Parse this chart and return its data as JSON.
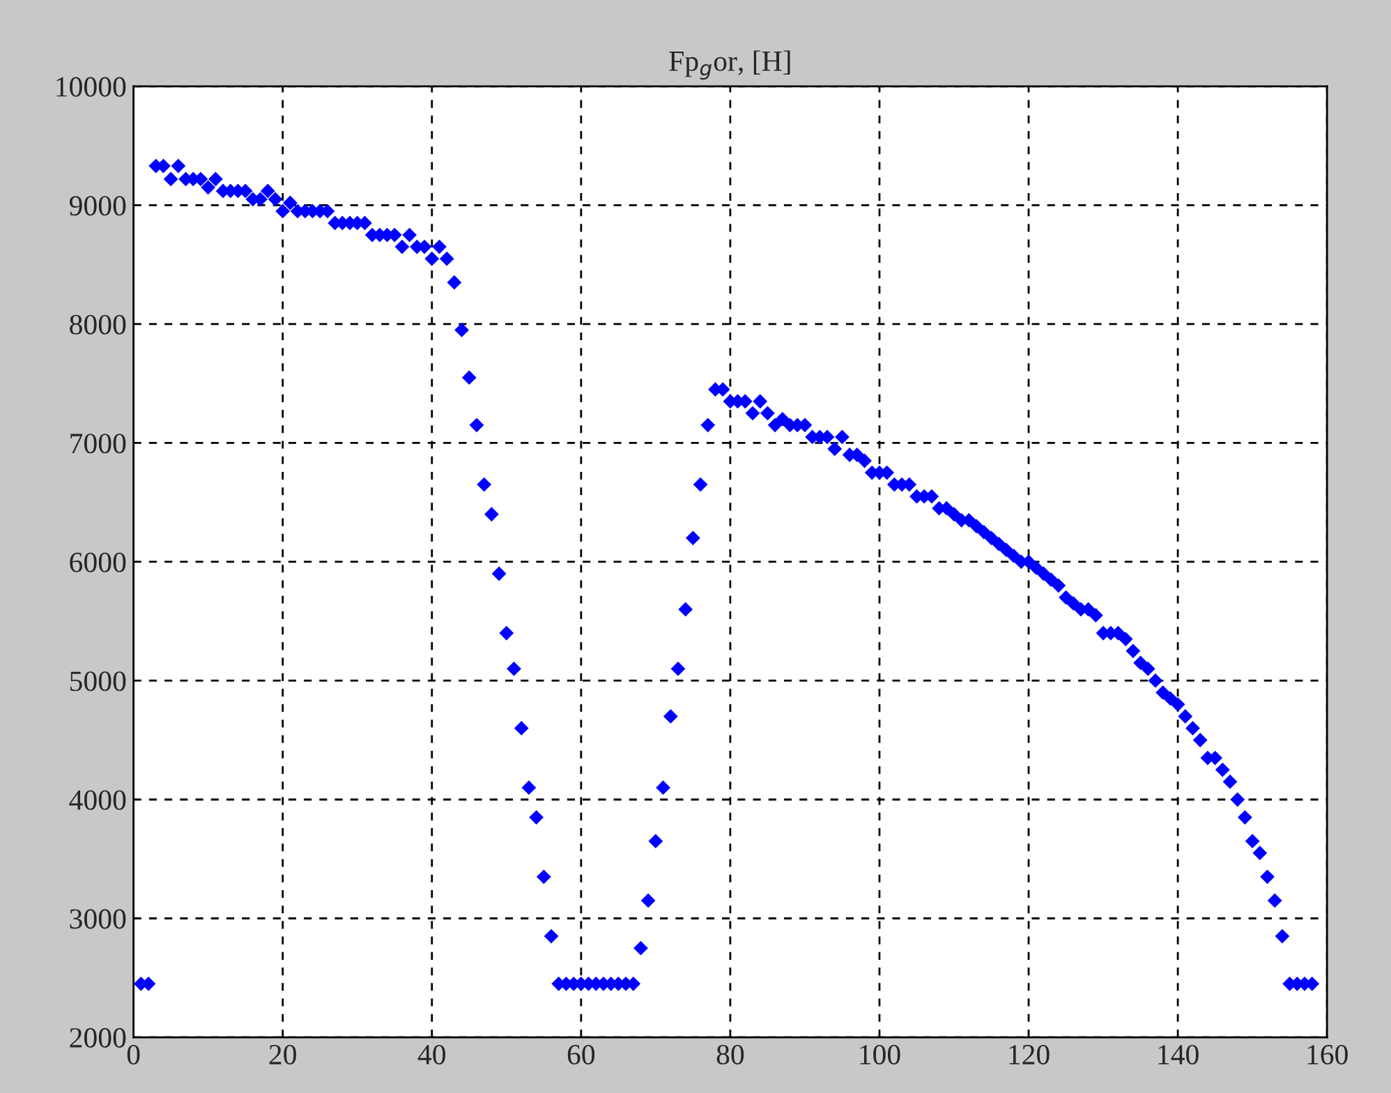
{
  "chart_data": {
    "type": "scatter",
    "title": "Fp$_{g}$or, [H]",
    "x": [
      1,
      2,
      3,
      4,
      5,
      6,
      7,
      8,
      9,
      10,
      11,
      12,
      13,
      14,
      15,
      16,
      17,
      18,
      19,
      20,
      21,
      22,
      23,
      24,
      25,
      26,
      27,
      28,
      29,
      30,
      31,
      32,
      33,
      34,
      35,
      36,
      37,
      38,
      39,
      40,
      41,
      42,
      43,
      44,
      45,
      46,
      47,
      48,
      49,
      50,
      51,
      52,
      53,
      54,
      55,
      56,
      57,
      58,
      59,
      60,
      61,
      62,
      63,
      64,
      65,
      66,
      67,
      68,
      69,
      70,
      71,
      72,
      73,
      74,
      75,
      76,
      77,
      78,
      79,
      80,
      81,
      82,
      83,
      84,
      85,
      86,
      87,
      88,
      89,
      90,
      91,
      92,
      93,
      94,
      95,
      96,
      97,
      98,
      99,
      100,
      101,
      102,
      103,
      104,
      105,
      106,
      107,
      108,
      109,
      110,
      111,
      112,
      113,
      114,
      115,
      116,
      117,
      118,
      119,
      120,
      121,
      122,
      123,
      124,
      125,
      126,
      127,
      128,
      129,
      130,
      131,
      132,
      133,
      134,
      135,
      136,
      137,
      138,
      139,
      140,
      141,
      142,
      143,
      144,
      145,
      146,
      147,
      148,
      149,
      150,
      151,
      152,
      153,
      154,
      155,
      156,
      157,
      158
    ],
    "series": [
      {
        "color": "#0000ff",
        "values": [
          2450,
          2450,
          9330,
          9330,
          9220,
          9330,
          9220,
          9220,
          9220,
          9150,
          9220,
          9120,
          9120,
          9120,
          9120,
          9050,
          9050,
          9120,
          9050,
          8950,
          9020,
          8950,
          8950,
          8950,
          8950,
          8950,
          8850,
          8850,
          8850,
          8850,
          8850,
          8750,
          8750,
          8750,
          8750,
          8650,
          8750,
          8650,
          8650,
          8550,
          8650,
          8550,
          8350,
          7950,
          7550,
          7150,
          6650,
          6400,
          5900,
          5400,
          5100,
          4600,
          4100,
          3850,
          3350,
          2850,
          2450,
          2450,
          2450,
          2450,
          2450,
          2450,
          2450,
          2450,
          2450,
          2450,
          2450,
          2750,
          3150,
          3650,
          4100,
          4700,
          5100,
          5600,
          6200,
          6650,
          7150,
          7450,
          7450,
          7350,
          7350,
          7350,
          7250,
          7350,
          7250,
          7150,
          7200,
          7150,
          7150,
          7150,
          7050,
          7050,
          7050,
          6950,
          7050,
          6900,
          6900,
          6850,
          6750,
          6750,
          6750,
          6650,
          6650,
          6650,
          6550,
          6550,
          6550,
          6450,
          6450,
          6400,
          6350,
          6350,
          6300,
          6250,
          6200,
          6150,
          6100,
          6050,
          6000,
          6000,
          5950,
          5900,
          5850,
          5800,
          5700,
          5650,
          5600,
          5600,
          5550,
          5400,
          5400,
          5400,
          5350,
          5250,
          5150,
          5100,
          5000,
          4900,
          4850,
          4800,
          4700,
          4600,
          4500,
          4350,
          4350,
          4250,
          4150,
          4000,
          3850,
          3650,
          3550,
          3350,
          3150,
          2850,
          2450,
          2450,
          2450,
          2450
        ]
      }
    ],
    "xlim": [
      0,
      160
    ],
    "xticks": [
      0,
      20,
      40,
      60,
      80,
      100,
      120,
      140,
      160
    ],
    "ylim": [
      2000,
      10000
    ],
    "yticks": [
      2000,
      3000,
      4000,
      5000,
      6000,
      7000,
      8000,
      9000,
      10000
    ],
    "grid": true,
    "marker": "diamond",
    "legend": false
  }
}
